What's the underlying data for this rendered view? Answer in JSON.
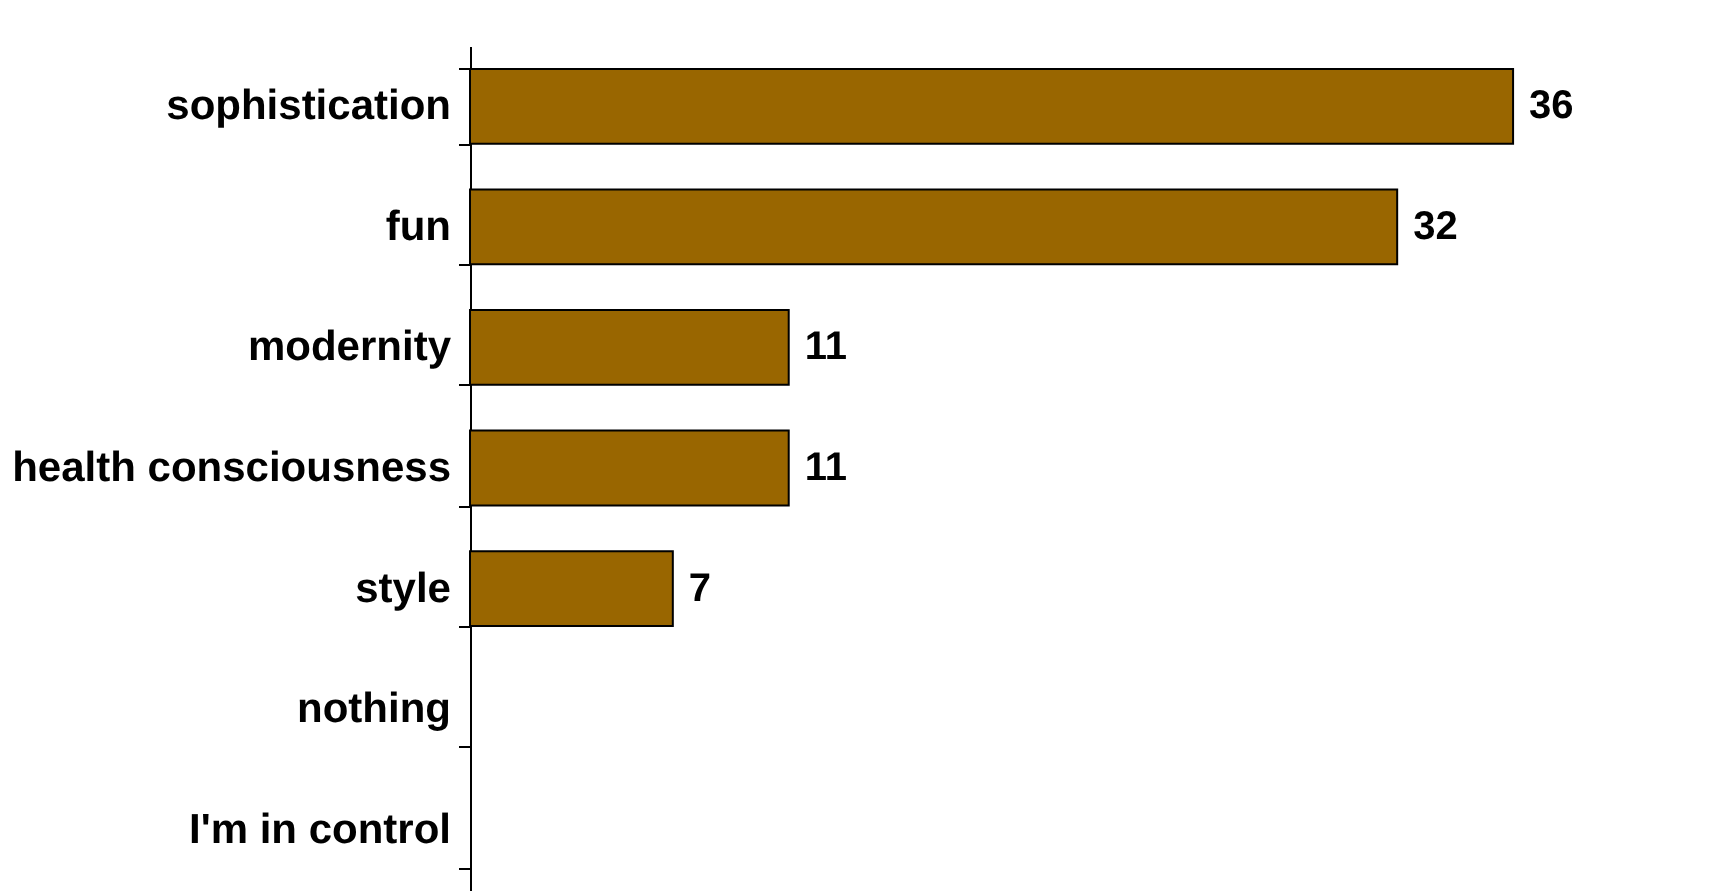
{
  "chart_data": {
    "type": "bar",
    "orientation": "horizontal",
    "categories": [
      "sophistication",
      "fun",
      "modernity",
      "health consciousness",
      "style",
      "nothing",
      "I'm in control"
    ],
    "values": [
      36,
      32,
      11,
      11,
      7,
      null,
      null
    ],
    "color": "#996600",
    "xlim": [
      0,
      39
    ],
    "data_labels": true,
    "grid": false
  }
}
